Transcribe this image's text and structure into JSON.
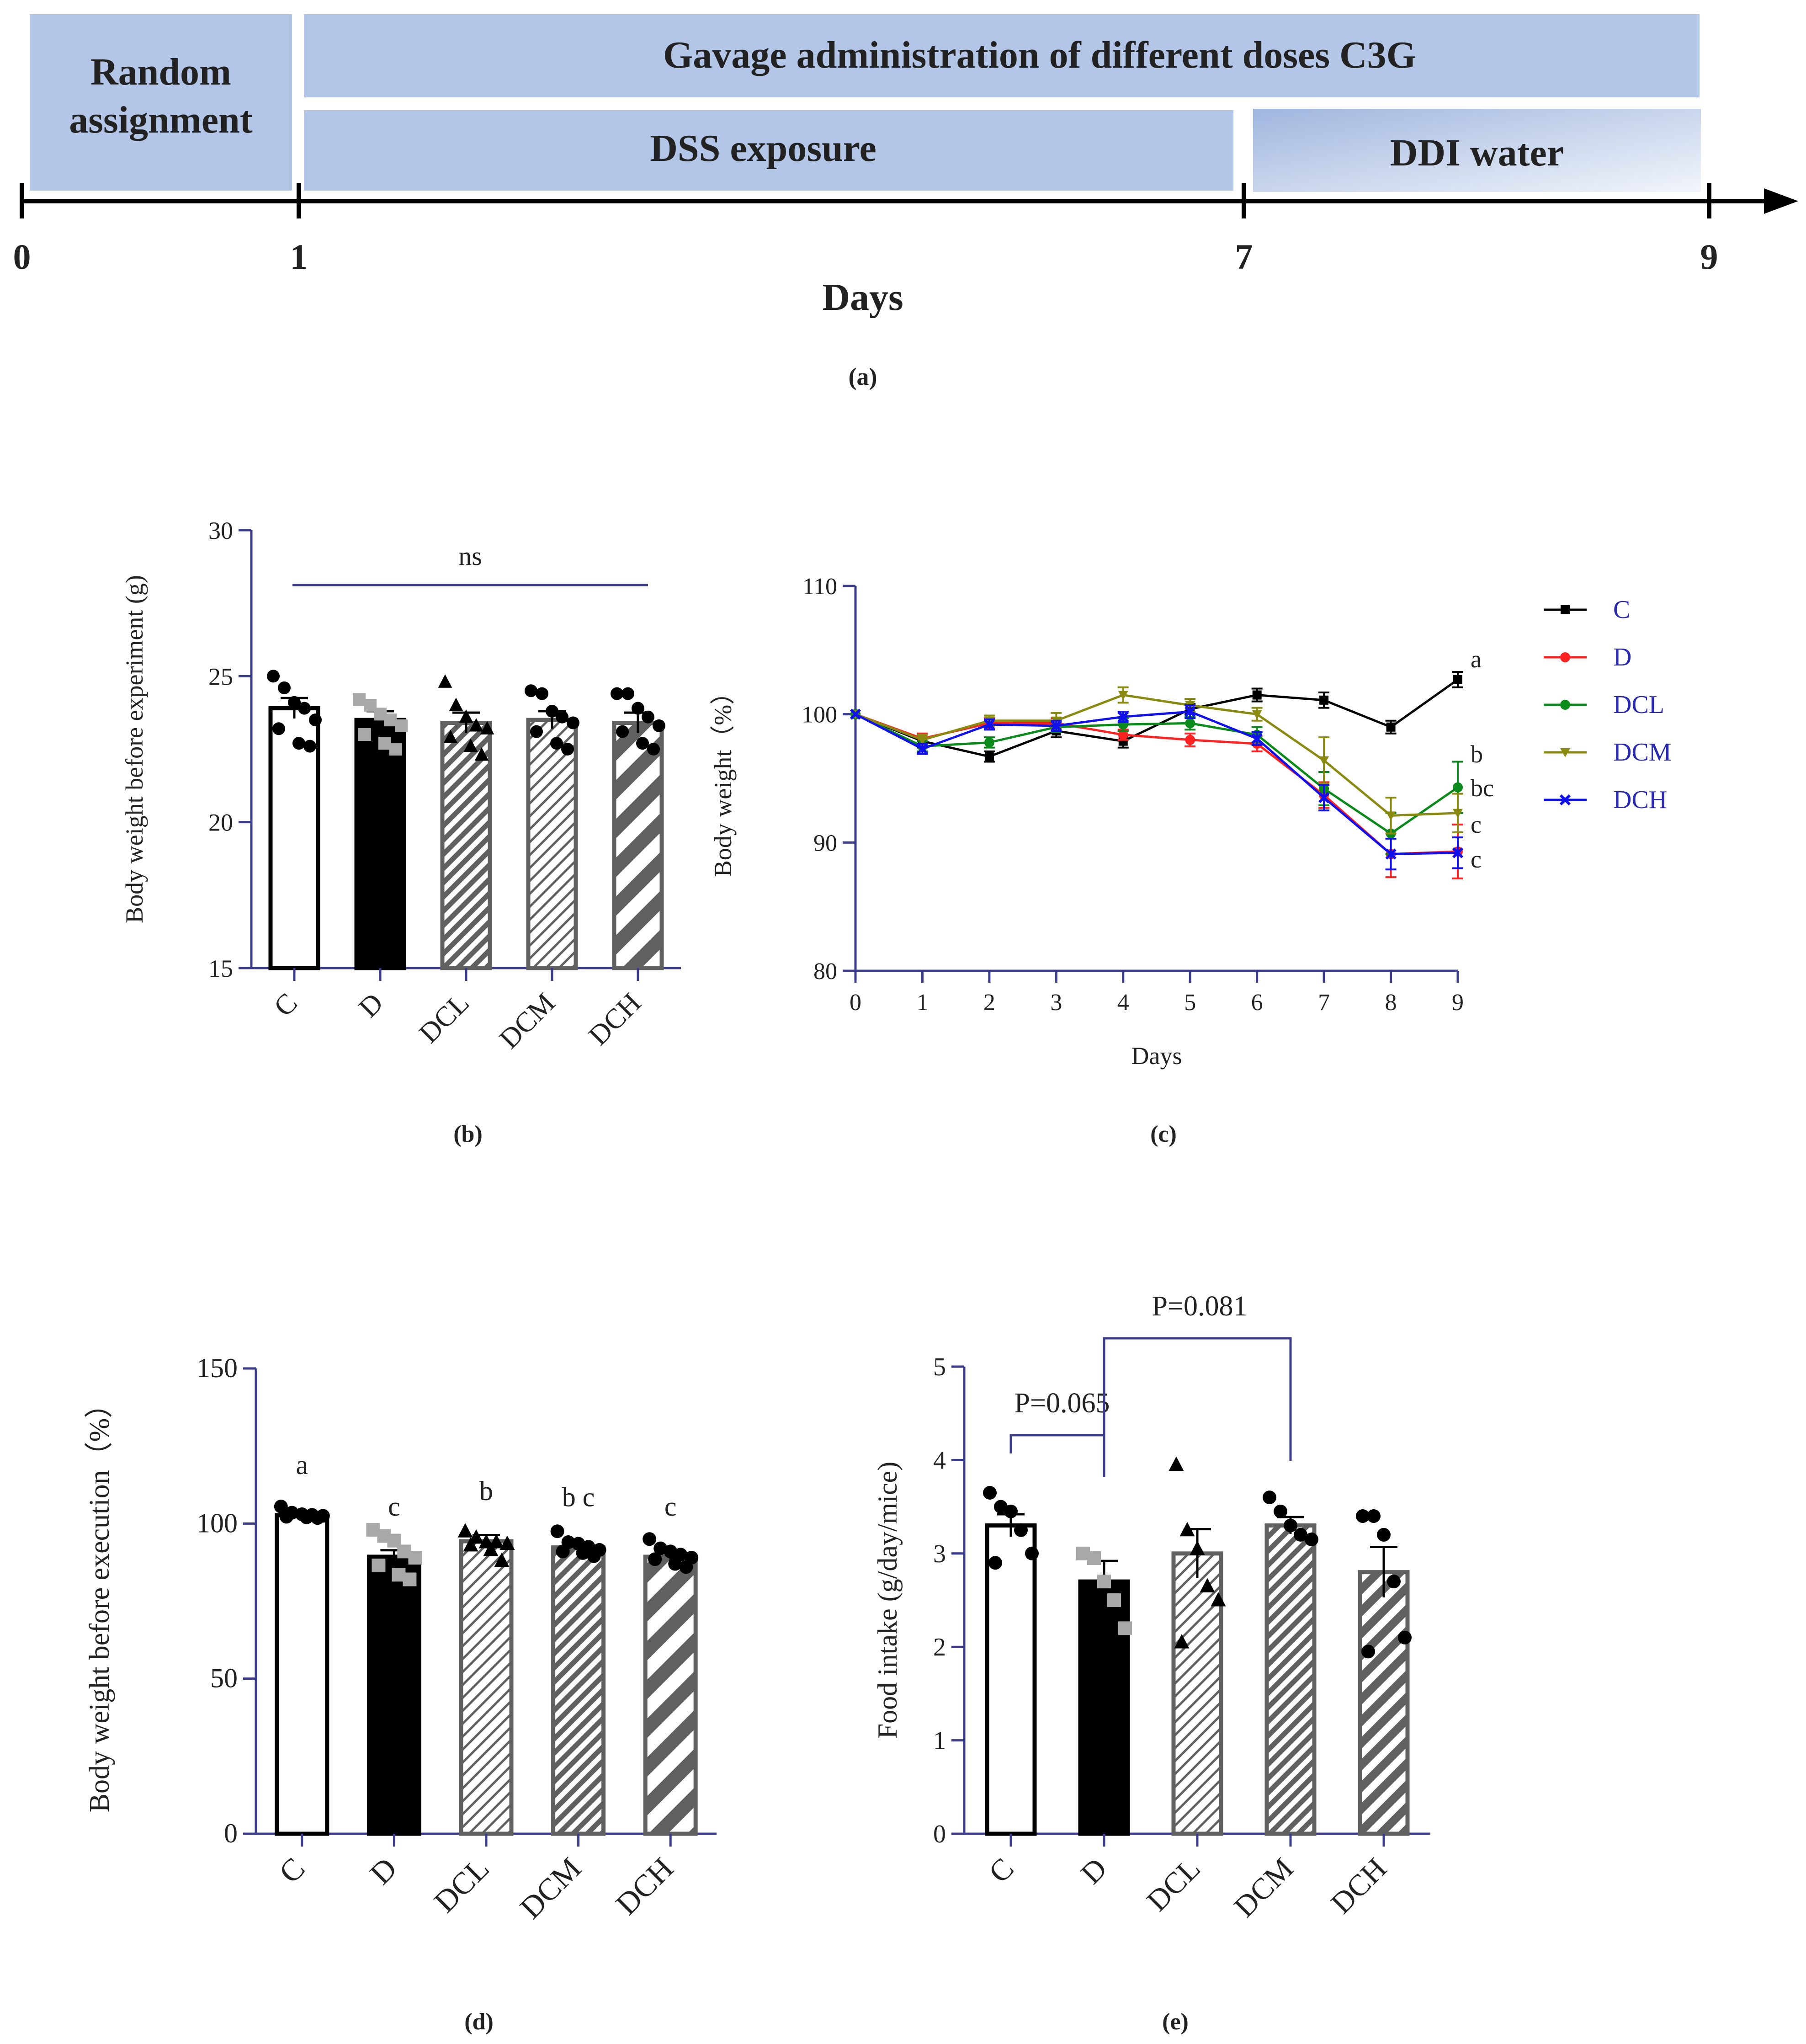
{
  "colors": {
    "axis": "#3c3c8c",
    "text": "#222222",
    "box_fill": "#b4c6e7",
    "box_fill_light": "#dfe7f5",
    "timeline": "#000000",
    "bar_c": "#ffffff",
    "bar_d": "#000000",
    "bar_hatch": "#606060",
    "legend_text": "#2a2ab0",
    "series_C": "#000000",
    "series_D": "#ff2222",
    "series_DCL": "#0b8a1c",
    "series_DCM": "#8a8a10",
    "series_DCH": "#1010ee"
  },
  "timeline": {
    "box_random": "Random assignment",
    "box_random_l1": "Random",
    "box_random_l2": "assignment",
    "box_gavage": "Gavage administration of different doses C3G",
    "box_dss": "DSS exposure",
    "box_ddi": "DDI water",
    "ticks": [
      "0",
      "1",
      "7",
      "9"
    ],
    "axis_label": "Days",
    "panel_label": "(a)"
  },
  "chart_data": [
    {
      "id": "b",
      "type": "bar",
      "panel_label": "(b)",
      "title": "",
      "ylabel": "Body weight before experiment (g)",
      "xlabel": "",
      "categories": [
        "C",
        "D",
        "DCL",
        "DCM",
        "DCH"
      ],
      "values": [
        23.9,
        23.5,
        23.4,
        23.5,
        23.4
      ],
      "sem": [
        0.35,
        0.3,
        0.35,
        0.3,
        0.35
      ],
      "ylim": [
        15,
        30
      ],
      "yticks": [
        15,
        20,
        25,
        30
      ],
      "annotation": "ns",
      "points": [
        [
          25.0,
          24.6,
          24.1,
          23.9,
          23.5,
          23.2,
          22.7,
          22.6
        ],
        [
          24.2,
          24.0,
          23.7,
          23.5,
          23.3,
          23.0,
          22.7,
          22.5
        ],
        [
          24.8,
          24.0,
          23.6,
          23.3,
          23.2,
          22.9,
          22.6,
          22.3
        ],
        [
          24.5,
          24.4,
          23.8,
          23.6,
          23.4,
          23.1,
          22.7,
          22.5
        ],
        [
          24.4,
          24.4,
          23.9,
          23.6,
          23.3,
          23.1,
          22.7,
          22.5
        ]
      ]
    },
    {
      "id": "c",
      "type": "line",
      "panel_label": "(c)",
      "title": "",
      "ylabel": "Body weight（%）",
      "xlabel": "Days",
      "x": [
        0,
        1,
        2,
        3,
        4,
        5,
        6,
        7,
        8,
        9
      ],
      "xlim": [
        0,
        9
      ],
      "ylim": [
        80,
        110
      ],
      "yticks": [
        80,
        90,
        100,
        110
      ],
      "series": [
        {
          "name": "C",
          "values": [
            100,
            97.9,
            96.7,
            98.7,
            97.9,
            100.4,
            101.5,
            101.1,
            99.0,
            102.7
          ],
          "sem": [
            0,
            0.5,
            0.4,
            0.5,
            0.5,
            0.4,
            0.5,
            0.6,
            0.5,
            0.6
          ],
          "marker": "square",
          "sig": "a"
        },
        {
          "name": "D",
          "values": [
            100,
            98.1,
            99.3,
            99.3,
            98.4,
            98.0,
            97.7,
            93.7,
            89.1,
            89.3
          ],
          "sem": [
            0,
            0.4,
            0.4,
            0.4,
            0.4,
            0.5,
            0.6,
            1.0,
            1.8,
            2.1
          ],
          "marker": "circle",
          "sig": "c"
        },
        {
          "name": "DCL",
          "values": [
            100,
            97.5,
            97.8,
            99.0,
            99.2,
            99.3,
            98.4,
            94.2,
            90.7,
            94.3
          ],
          "sem": [
            0,
            0.4,
            0.4,
            0.4,
            0.5,
            0.5,
            0.6,
            1.3,
            1.6,
            2.0
          ],
          "marker": "circle",
          "sig": "b"
        },
        {
          "name": "DCM",
          "values": [
            100,
            98.0,
            99.5,
            99.5,
            101.5,
            100.7,
            100.0,
            96.4,
            92.1,
            92.3
          ],
          "sem": [
            0,
            0.4,
            0.4,
            0.6,
            0.6,
            0.5,
            0.5,
            1.8,
            1.4,
            1.5
          ],
          "marker": "triangle-down",
          "sig": "bc"
        },
        {
          "name": "DCH",
          "values": [
            100,
            97.3,
            99.2,
            99.1,
            99.8,
            100.2,
            98.1,
            93.5,
            89.1,
            89.2
          ],
          "sem": [
            0,
            0.4,
            0.4,
            0.4,
            0.4,
            0.5,
            0.5,
            1.0,
            1.2,
            1.2
          ],
          "marker": "x",
          "sig": "c"
        }
      ],
      "sig_labels_order": [
        "a",
        "b",
        "bc",
        "c",
        "c"
      ],
      "legend_position": "top-right"
    },
    {
      "id": "d",
      "type": "bar",
      "panel_label": "(d)",
      "title": "",
      "ylabel": "Body weight before execution（%）",
      "xlabel": "",
      "categories": [
        "C",
        "D",
        "DCL",
        "DCM",
        "DCH"
      ],
      "values": [
        102.7,
        89.3,
        94.3,
        92.3,
        89.3
      ],
      "sem": [
        0.6,
        2.1,
        2.0,
        1.5,
        1.2
      ],
      "ylim": [
        0,
        150
      ],
      "yticks": [
        0,
        50,
        100,
        150
      ],
      "sig_labels": [
        "a",
        "c",
        "b",
        "b c",
        "c"
      ],
      "points": [
        [
          105.5,
          103.5,
          103.0,
          102.8,
          102.5,
          102.2,
          102.0,
          101.8
        ],
        [
          98.0,
          96.0,
          94.5,
          91.0,
          89.0,
          86.5,
          83.5,
          82.0
        ],
        [
          97.5,
          95.5,
          94.0,
          94.0,
          93.5,
          93.0,
          91.5,
          88.0
        ],
        [
          97.5,
          94.0,
          93.5,
          92.5,
          91.5,
          91.0,
          90.5,
          89.5
        ],
        [
          95.0,
          92.0,
          91.0,
          90.0,
          89.0,
          88.5,
          87.0,
          86.0
        ]
      ]
    },
    {
      "id": "e",
      "type": "bar",
      "panel_label": "(e)",
      "title": "",
      "ylabel": "Food intake (g/day/mice)",
      "xlabel": "",
      "categories": [
        "C",
        "D",
        "DCL",
        "DCM",
        "DCH"
      ],
      "values": [
        3.3,
        2.7,
        3.0,
        3.3,
        2.8
      ],
      "sem": [
        0.12,
        0.22,
        0.26,
        0.09,
        0.27
      ],
      "ylim": [
        0,
        5
      ],
      "yticks": [
        0,
        1,
        2,
        3,
        4,
        5
      ],
      "brackets": [
        {
          "from": "C",
          "to": "D",
          "label": "P=0.065"
        },
        {
          "from": "D",
          "to": "DCM",
          "label": "P=0.081"
        }
      ],
      "points": [
        [
          3.65,
          3.5,
          3.45,
          3.25,
          3.0,
          2.9
        ],
        [
          3.0,
          2.95,
          2.7,
          2.5,
          2.2
        ],
        [
          3.95,
          3.25,
          3.05,
          2.65,
          2.5,
          2.05
        ],
        [
          3.6,
          3.45,
          3.3,
          3.2,
          3.15
        ],
        [
          3.4,
          3.4,
          3.2,
          2.7,
          2.1,
          1.95
        ]
      ]
    }
  ]
}
